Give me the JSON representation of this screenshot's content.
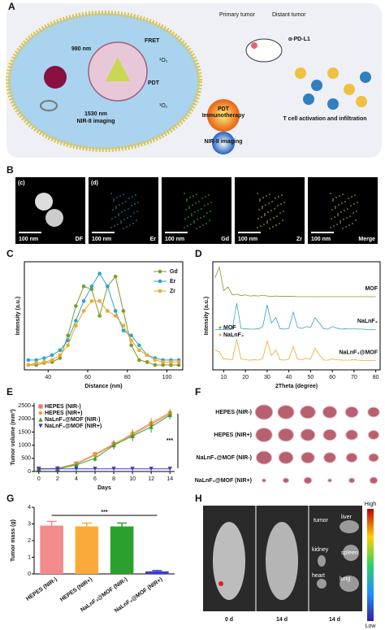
{
  "panel_labels": [
    "A",
    "B",
    "C",
    "D",
    "E",
    "F",
    "G",
    "H"
  ],
  "panel_a": {
    "laser_980": "980 nm",
    "fret": "FRET",
    "pdt": "PDT",
    "singlet_oxygen": [
      "¹O₂",
      "¹O₂"
    ],
    "emission": [
      "1530 nm",
      "NIR-II imaging"
    ],
    "primary_tumor": "Primary tumor",
    "distant_tumor": "Distant tumor",
    "antibody": "α-PD-L1",
    "therapy": [
      "PDT",
      "Immunotherapy"
    ],
    "imaging": "NIR-II imaging",
    "t_cell": "T cell activation and infiltration"
  },
  "panel_b": {
    "images": [
      {
        "tag": "(c)",
        "scale": "100 nm",
        "label": "DF"
      },
      {
        "tag": "(d)",
        "scale": "100 nm",
        "label": "Er"
      },
      {
        "scale": "100 nm",
        "label": "Gd"
      },
      {
        "scale": "100 nm",
        "label": "Zr"
      },
      {
        "scale": "100 nm",
        "label": "Merge"
      }
    ]
  },
  "chart_data": [
    {
      "type": "line",
      "x_label": "Distance (nm)",
      "y_label": "Intensity (a.u.)",
      "legend": "upper right",
      "markers": true,
      "x": [
        30,
        34,
        38,
        42,
        46,
        50,
        54,
        58,
        62,
        66,
        70,
        74,
        78,
        82,
        86,
        90,
        94,
        98,
        102,
        106
      ],
      "xlim": [
        28,
        108
      ],
      "xticks": [
        40,
        60,
        80,
        100
      ],
      "ylim": [
        0,
        1.1
      ],
      "series": [
        {
          "name": "Gd",
          "color": "#7f9a2a",
          "values": [
            0.05,
            0.05,
            0.07,
            0.08,
            0.12,
            0.35,
            0.65,
            0.85,
            0.82,
            0.55,
            0.85,
            0.95,
            0.6,
            0.25,
            0.1,
            0.08,
            0.05,
            0.05,
            0.05,
            0.05
          ]
        },
        {
          "name": "Er",
          "color": "#2fa4c8",
          "values": [
            0.1,
            0.1,
            0.12,
            0.15,
            0.2,
            0.3,
            0.5,
            0.7,
            0.85,
            0.98,
            0.85,
            0.6,
            0.4,
            0.35,
            0.25,
            0.15,
            0.12,
            0.1,
            0.1,
            0.1
          ]
        },
        {
          "name": "Zr",
          "color": "#f0a828",
          "values": [
            0.05,
            0.07,
            0.08,
            0.1,
            0.15,
            0.25,
            0.45,
            0.6,
            0.7,
            0.7,
            0.6,
            0.55,
            0.45,
            0.3,
            0.2,
            0.15,
            0.1,
            0.08,
            0.08,
            0.08
          ]
        }
      ]
    },
    {
      "type": "line",
      "x_label": "2Theta (degree)",
      "y_label": "Intensity (a.u.)",
      "legend": "inline",
      "markers": false,
      "x": [
        6,
        8,
        10,
        12,
        14,
        16,
        18,
        20,
        22,
        24,
        26,
        28,
        30,
        32,
        34,
        36,
        38,
        40,
        42,
        44,
        46,
        48,
        50,
        52,
        54,
        56,
        58,
        60,
        62,
        64,
        66,
        68,
        70,
        72,
        74,
        76,
        78,
        80
      ],
      "xlim": [
        5,
        82
      ],
      "xticks": [
        10,
        20,
        30,
        40,
        50,
        60,
        70,
        80
      ],
      "ylim": [
        0,
        3
      ],
      "series": [
        {
          "name": "MOF",
          "color": "#7f9a2a",
          "values": [
            2.55,
            2.85,
            2.2,
            2.3,
            2.08,
            2.1,
            2.06,
            2.08,
            2.05,
            2.06,
            2.05,
            2.07,
            2.05,
            2.04,
            2.05,
            2.04,
            2.04,
            2.04,
            2.04,
            2.03,
            2.03,
            2.03,
            2.03,
            2.03,
            2.03,
            2.03,
            2.03,
            2.03,
            2.03,
            2.03,
            2.03,
            2.03,
            2.03,
            2.03,
            2.03,
            2.03,
            2.03,
            2.03
          ]
        },
        {
          "name": "NaLnF₄",
          "color": "#2fa4c8",
          "values": [
            1.12,
            1.12,
            1.12,
            1.12,
            1.13,
            1.85,
            1.15,
            1.14,
            1.13,
            1.13,
            1.14,
            1.2,
            1.8,
            1.3,
            1.45,
            1.14,
            1.13,
            1.15,
            1.6,
            1.18,
            1.15,
            1.2,
            1.18,
            1.45,
            1.3,
            1.14,
            1.13,
            1.2,
            1.16,
            1.13,
            1.14,
            1.13,
            1.15,
            1.13,
            1.13,
            1.12,
            1.12,
            1.12
          ]
        },
        {
          "name": "NaLnF₄@MOF",
          "color": "#f0a828",
          "values": [
            0.55,
            0.5,
            0.3,
            0.3,
            0.28,
            0.85,
            0.3,
            0.28,
            0.27,
            0.28,
            0.27,
            0.32,
            0.8,
            0.4,
            0.55,
            0.28,
            0.27,
            0.3,
            0.65,
            0.3,
            0.28,
            0.32,
            0.3,
            0.6,
            0.42,
            0.27,
            0.27,
            0.3,
            0.28,
            0.27,
            0.27,
            0.27,
            0.28,
            0.27,
            0.26,
            0.26,
            0.26,
            0.26
          ]
        }
      ],
      "peak_legend": [
        "MOF",
        "NaLnF₄"
      ]
    },
    {
      "type": "line",
      "x_label": "Days",
      "y_label": "Tumor volume (mm³)",
      "legend": "upper left",
      "markers": true,
      "annotation": "***",
      "x": [
        0,
        2,
        4,
        6,
        8,
        10,
        12,
        14
      ],
      "xlim": [
        -0.5,
        14.5
      ],
      "xticks": [
        0,
        2,
        4,
        6,
        8,
        10,
        12,
        14
      ],
      "ylim": [
        0,
        2600
      ],
      "yticks": [
        0,
        500,
        1000,
        1500,
        2000,
        2500
      ],
      "series": [
        {
          "name": "HEPES (NIR-)",
          "color": "#e8707a",
          "marker": "square",
          "values": [
            100,
            120,
            300,
            650,
            1050,
            1400,
            1800,
            2200
          ],
          "errors": [
            20,
            30,
            60,
            100,
            150,
            180,
            200,
            150
          ]
        },
        {
          "name": "HEPES (NIR+)",
          "color": "#f5a020",
          "marker": "circle",
          "values": [
            100,
            110,
            280,
            620,
            1020,
            1450,
            1850,
            2250
          ],
          "errors": [
            20,
            30,
            60,
            90,
            140,
            170,
            190,
            140
          ]
        },
        {
          "name": "NaLnF₄@MOF (NIR-)",
          "color": "#2ca02c",
          "marker": "triangle",
          "values": [
            100,
            100,
            250,
            500,
            1000,
            1350,
            1700,
            2150
          ],
          "errors": [
            20,
            30,
            70,
            120,
            160,
            200,
            220,
            160
          ]
        },
        {
          "name": "NaLnF₄@MOF (NIR+)",
          "color": "#3a3ad0",
          "marker": "triangle-down",
          "values": [
            100,
            100,
            100,
            100,
            100,
            100,
            100,
            100
          ],
          "errors": [
            10,
            10,
            10,
            10,
            10,
            10,
            10,
            10
          ]
        }
      ]
    },
    {
      "type": "bar",
      "y_label": "Tumor mass (g)",
      "annotation": "***",
      "categories": [
        "HEPES (NIR-)",
        "HEPES (NIR+)",
        "NaLnF₄@MOF (NIR-)",
        "NaLnF₄@MOF (NIR+)"
      ],
      "values": [
        2.9,
        2.85,
        2.85,
        0.15
      ],
      "errors": [
        0.25,
        0.2,
        0.2,
        0.05
      ],
      "colors": [
        "#f28b8b",
        "#f9aa3a",
        "#2ca02c",
        "#3a3ad0"
      ],
      "ylim": [
        0,
        4
      ],
      "yticks": [
        0,
        1,
        2,
        3,
        4
      ]
    }
  ],
  "panel_f": {
    "rows": [
      "HEPES (NIR-)",
      "HEPES (NIR+)",
      "NaLnF₄@MOF (NIR-)",
      "NaLnF₄@MOF (NIR+)"
    ]
  },
  "panel_h": {
    "scale_high": "High",
    "scale_low": "Low",
    "days": [
      "0 d",
      "14 d",
      "14 d"
    ],
    "organs": [
      "tumor",
      "liver",
      "kidney",
      "spleen",
      "heart",
      "lung"
    ]
  }
}
